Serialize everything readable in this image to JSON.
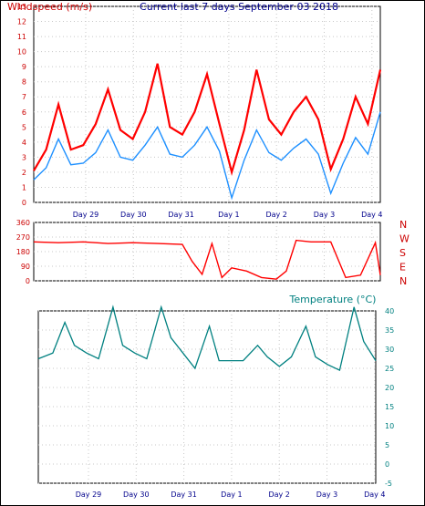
{
  "chart_data": [
    {
      "type": "line",
      "title": "Current last 7 days September 03 2018",
      "ylabel": "Windspeed (m/s)",
      "ylim": [
        0,
        13
      ],
      "y_ticks": [
        "0",
        "1",
        "2",
        "3",
        "4",
        "5",
        "6",
        "7",
        "8",
        "9",
        "10",
        "11",
        "12",
        "13"
      ],
      "x_ticks": [
        "Day 29",
        "Day 30",
        "Day 31",
        "Day 1",
        "Day 2",
        "Day 3",
        "Day 4"
      ],
      "series": [
        {
          "color": "#ff0000",
          "x": [
            0,
            0.25,
            0.5,
            0.75,
            1,
            1.25,
            1.5,
            1.75,
            2,
            2.25,
            2.5,
            2.75,
            3,
            3.25,
            3.5,
            3.75,
            4,
            4.25,
            4.5,
            4.75,
            5,
            5.25,
            5.5,
            5.75,
            6,
            6.25,
            6.5,
            6.75,
            7
          ],
          "values": [
            2.1,
            3.5,
            6.5,
            3.5,
            3.8,
            5.2,
            7.5,
            4.8,
            4.2,
            6,
            9.2,
            5,
            4.5,
            6,
            8.5,
            5.2,
            2,
            4.8,
            8.8,
            5.5,
            4.5,
            6,
            7,
            5.5,
            2.2,
            4.2,
            7,
            5.2,
            8.8
          ]
        },
        {
          "color": "#1e90ff",
          "x": [
            0,
            0.25,
            0.5,
            0.75,
            1,
            1.25,
            1.5,
            1.75,
            2,
            2.25,
            2.5,
            2.75,
            3,
            3.25,
            3.5,
            3.75,
            4,
            4.25,
            4.5,
            4.75,
            5,
            5.25,
            5.5,
            5.75,
            6,
            6.25,
            6.5,
            6.75,
            7
          ],
          "values": [
            1.5,
            2.3,
            4.2,
            2.5,
            2.6,
            3.3,
            4.8,
            3,
            2.8,
            3.8,
            5,
            3.2,
            3,
            3.8,
            5,
            3.4,
            0.3,
            2.8,
            4.8,
            3.3,
            2.8,
            3.6,
            4.2,
            3.2,
            0.6,
            2.6,
            4.3,
            3.2,
            6
          ]
        }
      ]
    },
    {
      "type": "line",
      "ylim": [
        0,
        360
      ],
      "y_ticks": [
        "0",
        "90",
        "180",
        "270",
        "360"
      ],
      "compass_labels": [
        "N",
        "W",
        "S",
        "E",
        "N"
      ],
      "series": [
        {
          "color": "#ff0000",
          "x": [
            0,
            0.5,
            1,
            1.5,
            2,
            2.5,
            3,
            3.2,
            3.4,
            3.6,
            3.8,
            4,
            4.3,
            4.6,
            4.9,
            5.1,
            5.3,
            5.6,
            6,
            6.3,
            6.6,
            6.9,
            7
          ],
          "values": [
            240,
            235,
            240,
            230,
            235,
            230,
            225,
            120,
            40,
            230,
            20,
            80,
            60,
            20,
            10,
            60,
            250,
            240,
            240,
            20,
            35,
            235,
            35
          ]
        }
      ]
    },
    {
      "type": "line",
      "title": "Temperature (°C)",
      "ylim": [
        -5,
        40
      ],
      "y_ticks": [
        "-5",
        "0",
        "5",
        "10",
        "15",
        "20",
        "25",
        "30",
        "35",
        "40"
      ],
      "x_ticks": [
        "Day 29",
        "Day 30",
        "Day 31",
        "Day 1",
        "Day 2",
        "Day 3",
        "Day 4"
      ],
      "series": [
        {
          "color": "#008080",
          "x": [
            0,
            0.3,
            0.55,
            0.75,
            1,
            1.25,
            1.55,
            1.75,
            2,
            2.25,
            2.55,
            2.75,
            3,
            3.25,
            3.55,
            3.75,
            4,
            4.25,
            4.55,
            4.75,
            5,
            5.25,
            5.55,
            5.75,
            6,
            6.25,
            6.55,
            6.75,
            7
          ],
          "values": [
            27.5,
            29,
            37,
            31,
            29,
            27.5,
            41,
            31,
            29,
            27.5,
            41,
            33,
            29,
            25,
            36,
            27,
            27,
            27,
            31,
            28,
            25.5,
            28,
            36,
            28,
            26,
            24.5,
            41,
            32,
            27
          ]
        }
      ]
    }
  ]
}
